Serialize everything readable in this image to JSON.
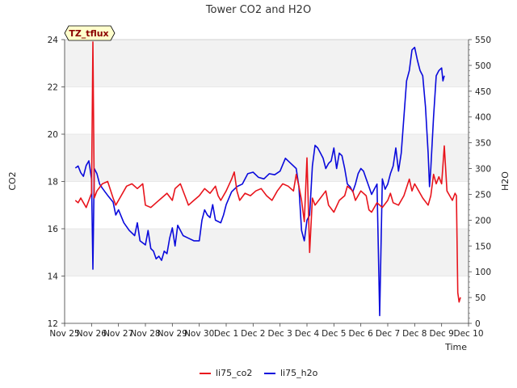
{
  "chart_data": {
    "type": "line",
    "title": "Tower CO2 and H2O",
    "xlabel": "Time",
    "ylabel": "CO2",
    "y2label": "H2O",
    "annotation": "TZ_tflux",
    "ylim": [
      12,
      24
    ],
    "y2lim": [
      0,
      550
    ],
    "xlim": [
      0,
      15
    ],
    "yticks": [
      12,
      14,
      16,
      18,
      20,
      22,
      24
    ],
    "y2ticks": [
      0,
      50,
      100,
      150,
      200,
      250,
      300,
      350,
      400,
      450,
      500,
      550
    ],
    "xticks": [
      {
        "value": 0,
        "label": "Nov 25"
      },
      {
        "value": 1,
        "label": "Nov 26"
      },
      {
        "value": 2,
        "label": "Nov 27"
      },
      {
        "value": 3,
        "label": "Nov 28"
      },
      {
        "value": 4,
        "label": "Nov 29"
      },
      {
        "value": 5,
        "label": "Nov 30"
      },
      {
        "value": 6,
        "label": "Dec 1"
      },
      {
        "value": 7,
        "label": "Dec 2"
      },
      {
        "value": 8,
        "label": "Dec 3"
      },
      {
        "value": 9,
        "label": "Dec 4"
      },
      {
        "value": 10,
        "label": "Dec 5"
      },
      {
        "value": 11,
        "label": "Dec 6"
      },
      {
        "value": 12,
        "label": "Dec 7"
      },
      {
        "value": 13,
        "label": "Dec 8"
      },
      {
        "value": 14,
        "label": "Dec 9"
      },
      {
        "value": 15,
        "label": "Dec 10"
      }
    ],
    "legend_position": "bottom-center",
    "series": [
      {
        "name": "li75_co2",
        "axis": "left",
        "color": "#e8141c",
        "points": [
          [
            0.4,
            17.2
          ],
          [
            0.5,
            17.1
          ],
          [
            0.6,
            17.3
          ],
          [
            0.7,
            17.1
          ],
          [
            0.8,
            16.9
          ],
          [
            0.9,
            17.2
          ],
          [
            1.0,
            17.5
          ],
          [
            1.05,
            23.9
          ],
          [
            1.1,
            17.3
          ],
          [
            1.2,
            17.6
          ],
          [
            1.4,
            17.9
          ],
          [
            1.6,
            18.0
          ],
          [
            1.8,
            17.3
          ],
          [
            1.9,
            17.0
          ],
          [
            2.1,
            17.4
          ],
          [
            2.3,
            17.8
          ],
          [
            2.5,
            17.9
          ],
          [
            2.7,
            17.7
          ],
          [
            2.9,
            17.9
          ],
          [
            3.0,
            17.0
          ],
          [
            3.2,
            16.9
          ],
          [
            3.4,
            17.1
          ],
          [
            3.6,
            17.3
          ],
          [
            3.8,
            17.5
          ],
          [
            4.0,
            17.2
          ],
          [
            4.1,
            17.7
          ],
          [
            4.3,
            17.9
          ],
          [
            4.5,
            17.3
          ],
          [
            4.6,
            17.0
          ],
          [
            4.8,
            17.2
          ],
          [
            5.0,
            17.4
          ],
          [
            5.2,
            17.7
          ],
          [
            5.4,
            17.5
          ],
          [
            5.6,
            17.8
          ],
          [
            5.7,
            17.4
          ],
          [
            5.8,
            17.2
          ],
          [
            6.0,
            17.6
          ],
          [
            6.2,
            18.1
          ],
          [
            6.3,
            18.4
          ],
          [
            6.4,
            17.6
          ],
          [
            6.5,
            17.2
          ],
          [
            6.7,
            17.5
          ],
          [
            6.9,
            17.4
          ],
          [
            7.1,
            17.6
          ],
          [
            7.3,
            17.7
          ],
          [
            7.5,
            17.4
          ],
          [
            7.7,
            17.2
          ],
          [
            7.9,
            17.6
          ],
          [
            8.1,
            17.9
          ],
          [
            8.3,
            17.8
          ],
          [
            8.5,
            17.6
          ],
          [
            8.6,
            18.3
          ],
          [
            8.7,
            17.8
          ],
          [
            8.8,
            17.2
          ],
          [
            8.9,
            16.3
          ],
          [
            9.0,
            19.0
          ],
          [
            9.1,
            15.0
          ],
          [
            9.2,
            17.3
          ],
          [
            9.3,
            17.0
          ],
          [
            9.5,
            17.3
          ],
          [
            9.7,
            17.6
          ],
          [
            9.8,
            17.0
          ],
          [
            10.0,
            16.7
          ],
          [
            10.2,
            17.2
          ],
          [
            10.4,
            17.4
          ],
          [
            10.5,
            17.8
          ],
          [
            10.7,
            17.6
          ],
          [
            10.8,
            17.2
          ],
          [
            11.0,
            17.6
          ],
          [
            11.2,
            17.4
          ],
          [
            11.3,
            16.8
          ],
          [
            11.4,
            16.7
          ],
          [
            11.6,
            17.1
          ],
          [
            11.8,
            16.9
          ],
          [
            12.0,
            17.2
          ],
          [
            12.1,
            17.5
          ],
          [
            12.2,
            17.1
          ],
          [
            12.4,
            17.0
          ],
          [
            12.6,
            17.4
          ],
          [
            12.8,
            18.1
          ],
          [
            12.9,
            17.6
          ],
          [
            13.0,
            17.9
          ],
          [
            13.1,
            17.7
          ],
          [
            13.3,
            17.3
          ],
          [
            13.5,
            17.0
          ],
          [
            13.6,
            17.4
          ],
          [
            13.7,
            18.3
          ],
          [
            13.8,
            17.9
          ],
          [
            13.9,
            18.2
          ],
          [
            14.0,
            17.9
          ],
          [
            14.1,
            19.5
          ],
          [
            14.2,
            17.6
          ],
          [
            14.3,
            17.4
          ],
          [
            14.4,
            17.2
          ],
          [
            14.5,
            17.5
          ],
          [
            14.55,
            17.4
          ],
          [
            14.6,
            13.3
          ],
          [
            14.65,
            12.9
          ],
          [
            14.7,
            13.1
          ]
        ]
      },
      {
        "name": "li75_h2o",
        "axis": "right",
        "color": "#0a0adc",
        "points": [
          [
            0.4,
            301
          ],
          [
            0.5,
            305
          ],
          [
            0.6,
            292
          ],
          [
            0.7,
            285
          ],
          [
            0.8,
            306
          ],
          [
            0.9,
            315
          ],
          [
            1.0,
            280
          ],
          [
            1.05,
            105
          ],
          [
            1.1,
            300
          ],
          [
            1.2,
            290
          ],
          [
            1.3,
            270
          ],
          [
            1.4,
            262
          ],
          [
            1.5,
            255
          ],
          [
            1.6,
            248
          ],
          [
            1.8,
            235
          ],
          [
            1.9,
            210
          ],
          [
            2.0,
            220
          ],
          [
            2.2,
            195
          ],
          [
            2.4,
            180
          ],
          [
            2.6,
            170
          ],
          [
            2.7,
            195
          ],
          [
            2.8,
            160
          ],
          [
            3.0,
            152
          ],
          [
            3.1,
            180
          ],
          [
            3.2,
            145
          ],
          [
            3.3,
            140
          ],
          [
            3.4,
            125
          ],
          [
            3.5,
            130
          ],
          [
            3.6,
            122
          ],
          [
            3.7,
            140
          ],
          [
            3.8,
            135
          ],
          [
            3.9,
            165
          ],
          [
            4.0,
            185
          ],
          [
            4.1,
            150
          ],
          [
            4.2,
            190
          ],
          [
            4.4,
            170
          ],
          [
            4.6,
            165
          ],
          [
            4.8,
            160
          ],
          [
            5.0,
            160
          ],
          [
            5.1,
            200
          ],
          [
            5.2,
            220
          ],
          [
            5.3,
            210
          ],
          [
            5.4,
            205
          ],
          [
            5.5,
            230
          ],
          [
            5.6,
            200
          ],
          [
            5.8,
            195
          ],
          [
            5.9,
            210
          ],
          [
            6.0,
            230
          ],
          [
            6.2,
            255
          ],
          [
            6.4,
            265
          ],
          [
            6.6,
            270
          ],
          [
            6.8,
            290
          ],
          [
            7.0,
            293
          ],
          [
            7.2,
            283
          ],
          [
            7.4,
            280
          ],
          [
            7.6,
            290
          ],
          [
            7.8,
            288
          ],
          [
            8.0,
            295
          ],
          [
            8.2,
            320
          ],
          [
            8.4,
            310
          ],
          [
            8.6,
            300
          ],
          [
            8.7,
            265
          ],
          [
            8.8,
            180
          ],
          [
            8.9,
            160
          ],
          [
            9.0,
            200
          ],
          [
            9.1,
            210
          ],
          [
            9.2,
            305
          ],
          [
            9.3,
            345
          ],
          [
            9.4,
            340
          ],
          [
            9.5,
            330
          ],
          [
            9.6,
            320
          ],
          [
            9.7,
            300
          ],
          [
            9.8,
            310
          ],
          [
            9.9,
            315
          ],
          [
            10.0,
            340
          ],
          [
            10.1,
            300
          ],
          [
            10.2,
            330
          ],
          [
            10.3,
            325
          ],
          [
            10.4,
            300
          ],
          [
            10.5,
            270
          ],
          [
            10.6,
            265
          ],
          [
            10.7,
            255
          ],
          [
            10.8,
            270
          ],
          [
            10.9,
            290
          ],
          [
            11.0,
            300
          ],
          [
            11.1,
            295
          ],
          [
            11.2,
            280
          ],
          [
            11.3,
            265
          ],
          [
            11.4,
            250
          ],
          [
            11.5,
            260
          ],
          [
            11.6,
            270
          ],
          [
            11.7,
            15
          ],
          [
            11.8,
            280
          ],
          [
            11.9,
            260
          ],
          [
            12.0,
            270
          ],
          [
            12.1,
            290
          ],
          [
            12.2,
            305
          ],
          [
            12.3,
            340
          ],
          [
            12.4,
            295
          ],
          [
            12.5,
            330
          ],
          [
            12.6,
            400
          ],
          [
            12.7,
            470
          ],
          [
            12.8,
            490
          ],
          [
            12.9,
            530
          ],
          [
            13.0,
            535
          ],
          [
            13.1,
            510
          ],
          [
            13.2,
            490
          ],
          [
            13.3,
            480
          ],
          [
            13.4,
            420
          ],
          [
            13.5,
            330
          ],
          [
            13.55,
            265
          ],
          [
            13.6,
            300
          ],
          [
            13.7,
            400
          ],
          [
            13.8,
            480
          ],
          [
            13.9,
            490
          ],
          [
            14.0,
            495
          ],
          [
            14.05,
            470
          ],
          [
            14.1,
            480
          ]
        ]
      }
    ]
  }
}
